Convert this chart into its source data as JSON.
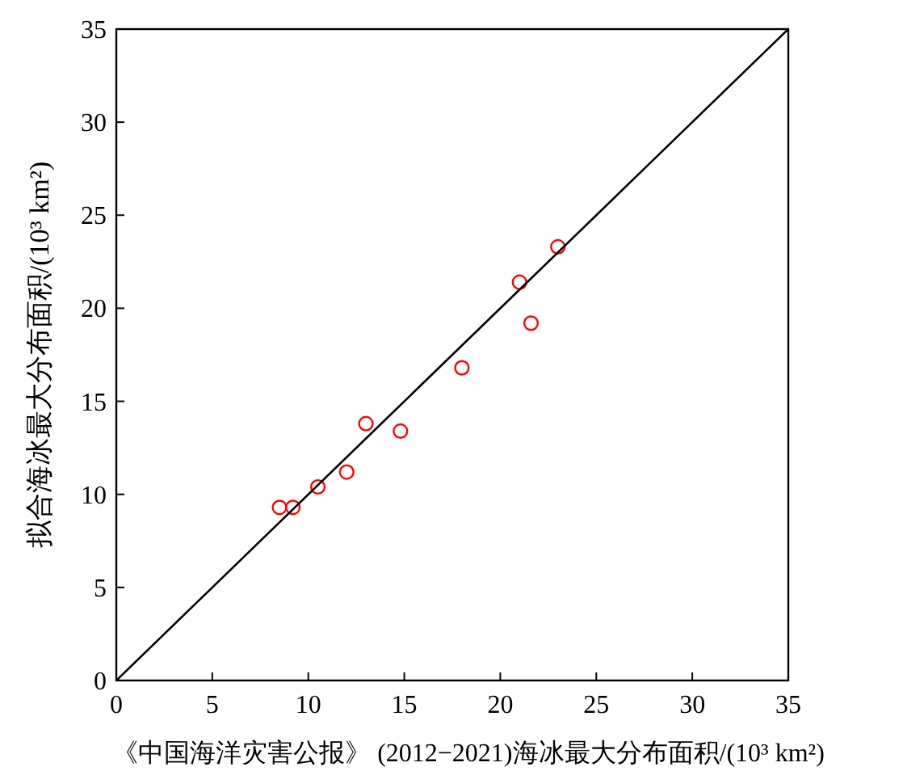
{
  "chart_data": {
    "type": "scatter",
    "xlabel": "《中国海洋灾害公报》 (2012−2021)海冰最大分布面积/(10³ km²)",
    "ylabel": "拟合海冰最大分布面积/(10³ km²)",
    "xlim": [
      0,
      35
    ],
    "ylim": [
      0,
      35
    ],
    "xticks": [
      0,
      5,
      10,
      15,
      20,
      25,
      30,
      35
    ],
    "yticks": [
      0,
      5,
      10,
      15,
      20,
      25,
      30,
      35
    ],
    "grid": false,
    "series": [
      {
        "color": "#ff0000",
        "marker": "circle",
        "x": [
          8.5,
          9.2,
          10.5,
          12.0,
          13.0,
          14.8,
          18.0,
          21.0,
          21.6,
          23.0
        ],
        "values": [
          9.3,
          9.3,
          10.4,
          11.2,
          13.8,
          13.4,
          16.8,
          21.4,
          19.2,
          23.3
        ]
      },
      {
        "type": "line",
        "marker": "none",
        "color": "#000000",
        "x": [
          0,
          35
        ],
        "values": [
          0,
          35
        ],
        "line_style": "solid"
      }
    ]
  }
}
